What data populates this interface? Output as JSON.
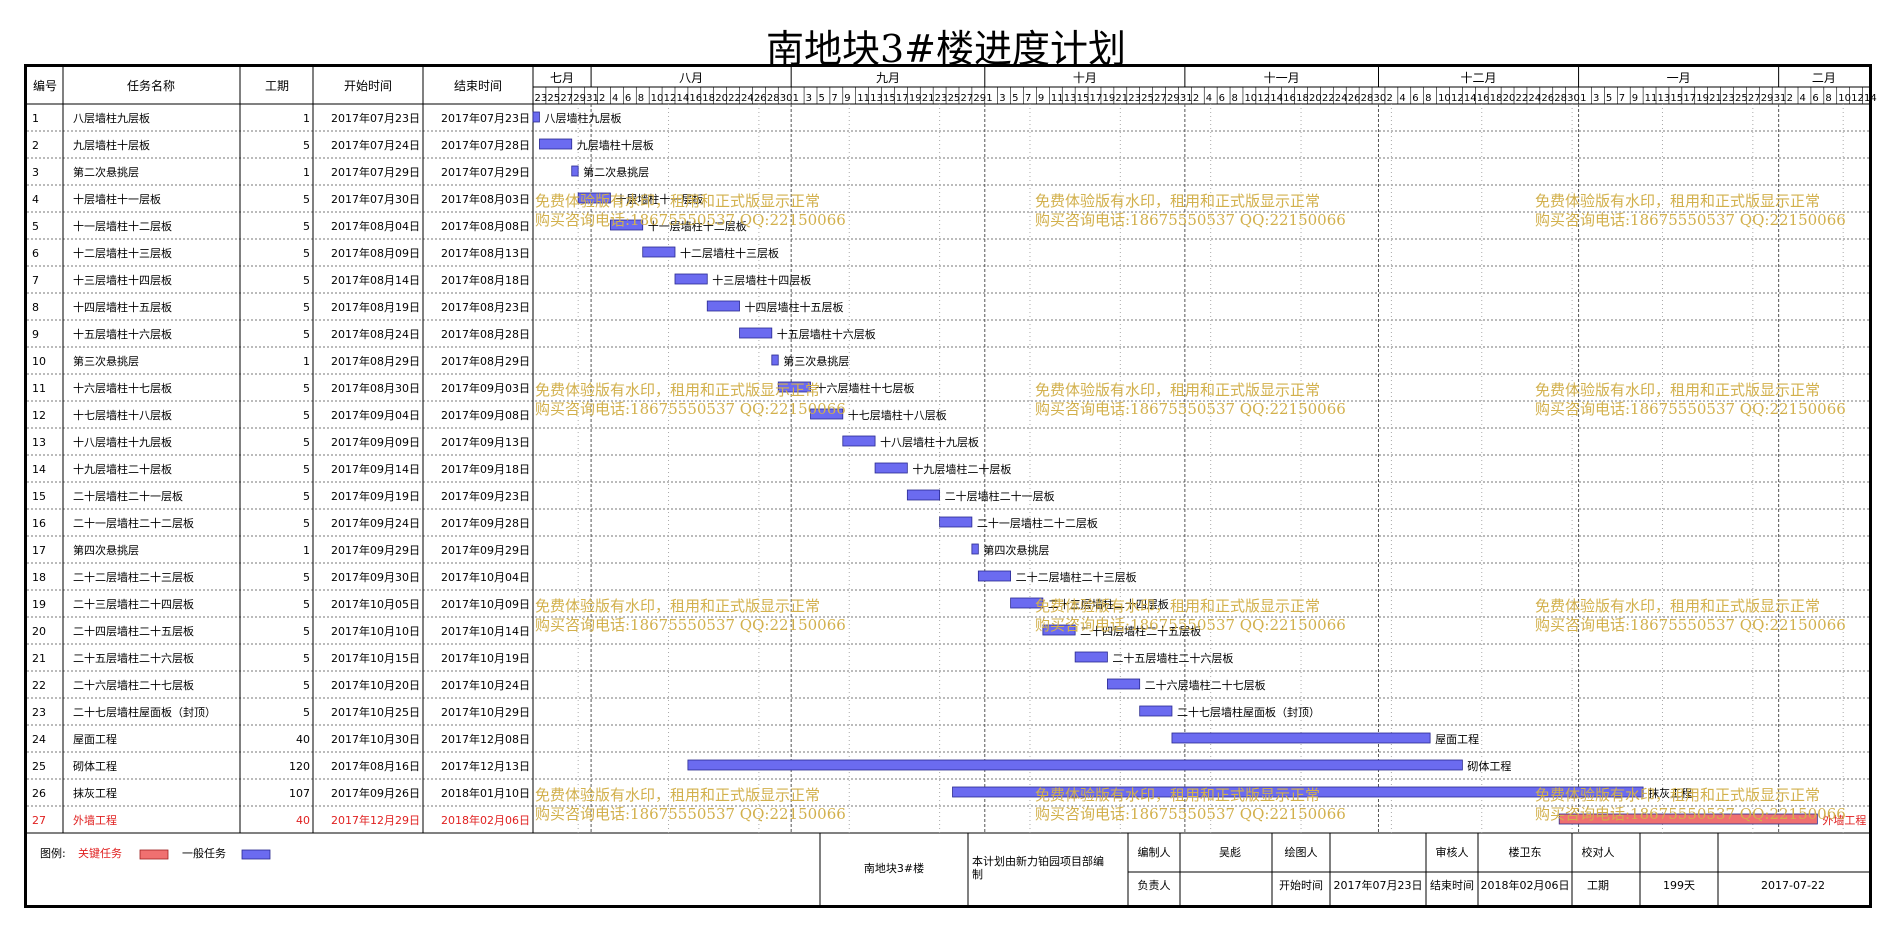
{
  "title": "南地块3#楼进度计划",
  "headers": {
    "no": "编号",
    "name": "任务名称",
    "dur": "工期",
    "start": "开始时间",
    "end": "结束时间"
  },
  "months": [
    {
      "label": "七月",
      "start": "2017-07-23",
      "end": "2017-07-31"
    },
    {
      "label": "八月",
      "start": "2017-08-01",
      "end": "2017-08-31"
    },
    {
      "label": "九月",
      "start": "2017-09-01",
      "end": "2017-09-30"
    },
    {
      "label": "十月",
      "start": "2017-10-01",
      "end": "2017-10-31"
    },
    {
      "label": "十一月",
      "start": "2017-11-01",
      "end": "2017-11-30"
    },
    {
      "label": "十二月",
      "start": "2017-12-01",
      "end": "2017-12-31"
    },
    {
      "label": "一月",
      "start": "2018-01-01",
      "end": "2018-01-31"
    },
    {
      "label": "二月",
      "start": "2018-02-01",
      "end": "2018-02-14"
    }
  ],
  "chart_data": {
    "type": "gantt",
    "x_range": [
      "2017-07-23",
      "2018-02-14"
    ],
    "tasks": [
      {
        "id": "1",
        "name": "八层墙柱九层板",
        "duration": "1",
        "start": "2017年07月23日",
        "end": "2017年07月23日",
        "s": "2017-07-23",
        "e": "2017-07-23",
        "critical": false
      },
      {
        "id": "2",
        "name": "九层墙柱十层板",
        "duration": "5",
        "start": "2017年07月24日",
        "end": "2017年07月28日",
        "s": "2017-07-24",
        "e": "2017-07-28",
        "critical": false
      },
      {
        "id": "3",
        "name": "第二次悬挑层",
        "duration": "1",
        "start": "2017年07月29日",
        "end": "2017年07月29日",
        "s": "2017-07-29",
        "e": "2017-07-29",
        "critical": false
      },
      {
        "id": "4",
        "name": "十层墙柱十一层板",
        "duration": "5",
        "start": "2017年07月30日",
        "end": "2017年08月03日",
        "s": "2017-07-30",
        "e": "2017-08-03",
        "critical": false
      },
      {
        "id": "5",
        "name": "十一层墙柱十二层板",
        "duration": "5",
        "start": "2017年08月04日",
        "end": "2017年08月08日",
        "s": "2017-08-04",
        "e": "2017-08-08",
        "critical": false
      },
      {
        "id": "6",
        "name": "十二层墙柱十三层板",
        "duration": "5",
        "start": "2017年08月09日",
        "end": "2017年08月13日",
        "s": "2017-08-09",
        "e": "2017-08-13",
        "critical": false
      },
      {
        "id": "7",
        "name": "十三层墙柱十四层板",
        "duration": "5",
        "start": "2017年08月14日",
        "end": "2017年08月18日",
        "s": "2017-08-14",
        "e": "2017-08-18",
        "critical": false
      },
      {
        "id": "8",
        "name": "十四层墙柱十五层板",
        "duration": "5",
        "start": "2017年08月19日",
        "end": "2017年08月23日",
        "s": "2017-08-19",
        "e": "2017-08-23",
        "critical": false
      },
      {
        "id": "9",
        "name": "十五层墙柱十六层板",
        "duration": "5",
        "start": "2017年08月24日",
        "end": "2017年08月28日",
        "s": "2017-08-24",
        "e": "2017-08-28",
        "critical": false
      },
      {
        "id": "10",
        "name": "第三次悬挑层",
        "duration": "1",
        "start": "2017年08月29日",
        "end": "2017年08月29日",
        "s": "2017-08-29",
        "e": "2017-08-29",
        "critical": false
      },
      {
        "id": "11",
        "name": "十六层墙柱十七层板",
        "duration": "5",
        "start": "2017年08月30日",
        "end": "2017年09月03日",
        "s": "2017-08-30",
        "e": "2017-09-03",
        "critical": false
      },
      {
        "id": "12",
        "name": "十七层墙柱十八层板",
        "duration": "5",
        "start": "2017年09月04日",
        "end": "2017年09月08日",
        "s": "2017-09-04",
        "e": "2017-09-08",
        "critical": false
      },
      {
        "id": "13",
        "name": "十八层墙柱十九层板",
        "duration": "5",
        "start": "2017年09月09日",
        "end": "2017年09月13日",
        "s": "2017-09-09",
        "e": "2017-09-13",
        "critical": false
      },
      {
        "id": "14",
        "name": "十九层墙柱二十层板",
        "duration": "5",
        "start": "2017年09月14日",
        "end": "2017年09月18日",
        "s": "2017-09-14",
        "e": "2017-09-18",
        "critical": false
      },
      {
        "id": "15",
        "name": "二十层墙柱二十一层板",
        "duration": "5",
        "start": "2017年09月19日",
        "end": "2017年09月23日",
        "s": "2017-09-19",
        "e": "2017-09-23",
        "critical": false
      },
      {
        "id": "16",
        "name": "二十一层墙柱二十二层板",
        "duration": "5",
        "start": "2017年09月24日",
        "end": "2017年09月28日",
        "s": "2017-09-24",
        "e": "2017-09-28",
        "critical": false
      },
      {
        "id": "17",
        "name": "第四次悬挑层",
        "duration": "1",
        "start": "2017年09月29日",
        "end": "2017年09月29日",
        "s": "2017-09-29",
        "e": "2017-09-29",
        "critical": false
      },
      {
        "id": "18",
        "name": "二十二层墙柱二十三层板",
        "duration": "5",
        "start": "2017年09月30日",
        "end": "2017年10月04日",
        "s": "2017-09-30",
        "e": "2017-10-04",
        "critical": false
      },
      {
        "id": "19",
        "name": "二十三层墙柱二十四层板",
        "duration": "5",
        "start": "2017年10月05日",
        "end": "2017年10月09日",
        "s": "2017-10-05",
        "e": "2017-10-09",
        "critical": false
      },
      {
        "id": "20",
        "name": "二十四层墙柱二十五层板",
        "duration": "5",
        "start": "2017年10月10日",
        "end": "2017年10月14日",
        "s": "2017-10-10",
        "e": "2017-10-14",
        "critical": false
      },
      {
        "id": "21",
        "name": "二十五层墙柱二十六层板",
        "duration": "5",
        "start": "2017年10月15日",
        "end": "2017年10月19日",
        "s": "2017-10-15",
        "e": "2017-10-19",
        "critical": false
      },
      {
        "id": "22",
        "name": "二十六层墙柱二十七层板",
        "duration": "5",
        "start": "2017年10月20日",
        "end": "2017年10月24日",
        "s": "2017-10-20",
        "e": "2017-10-24",
        "critical": false
      },
      {
        "id": "23",
        "name": "二十七层墙柱屋面板（封顶）",
        "duration": "5",
        "start": "2017年10月25日",
        "end": "2017年10月29日",
        "s": "2017-10-25",
        "e": "2017-10-29",
        "critical": false
      },
      {
        "id": "24",
        "name": "屋面工程",
        "duration": "40",
        "start": "2017年10月30日",
        "end": "2017年12月08日",
        "s": "2017-10-30",
        "e": "2017-12-08",
        "critical": false
      },
      {
        "id": "25",
        "name": "砌体工程",
        "duration": "120",
        "start": "2017年08月16日",
        "end": "2017年12月13日",
        "s": "2017-08-16",
        "e": "2017-12-13",
        "critical": false
      },
      {
        "id": "26",
        "name": "抹灰工程",
        "duration": "107",
        "start": "2017年09月26日",
        "end": "2018年01月10日",
        "s": "2017-09-26",
        "e": "2018-01-10",
        "critical": false
      },
      {
        "id": "27",
        "name": "外墙工程",
        "duration": "40",
        "start": "2017年12月29日",
        "end": "2018年02月06日",
        "s": "2017-12-29",
        "e": "2018-02-06",
        "critical": true
      }
    ]
  },
  "watermark": {
    "line1": "免费体验版有水印，租用和正式版显示正常",
    "line2": "购买咨询电话:18675550537 QQ:22150066"
  },
  "legend": {
    "label": "图例:",
    "critical": "关键任务",
    "normal": "一般任务"
  },
  "footer": {
    "project": "南地块3#楼",
    "note": "本计划由新力铂园项目部编制",
    "compiler_label": "编制人",
    "compiler": "吴彪",
    "drawer_label": "绘图人",
    "drawer": "",
    "reviewer_label": "审核人",
    "reviewer": "楼卫东",
    "checker_label": "校对人",
    "checker": "",
    "owner_label": "负责人",
    "owner": "",
    "start_label": "开始时间",
    "start": "2017年07月23日",
    "end_label": "结束时间",
    "end": "2018年02月06日",
    "dur_label": "工期",
    "dur": "199天",
    "date": "2017-07-22"
  },
  "colors": {
    "normal": "#6b6bf0",
    "critical": "#f07070",
    "critical_text": "#e02020",
    "watermark": "#d2b04c"
  }
}
